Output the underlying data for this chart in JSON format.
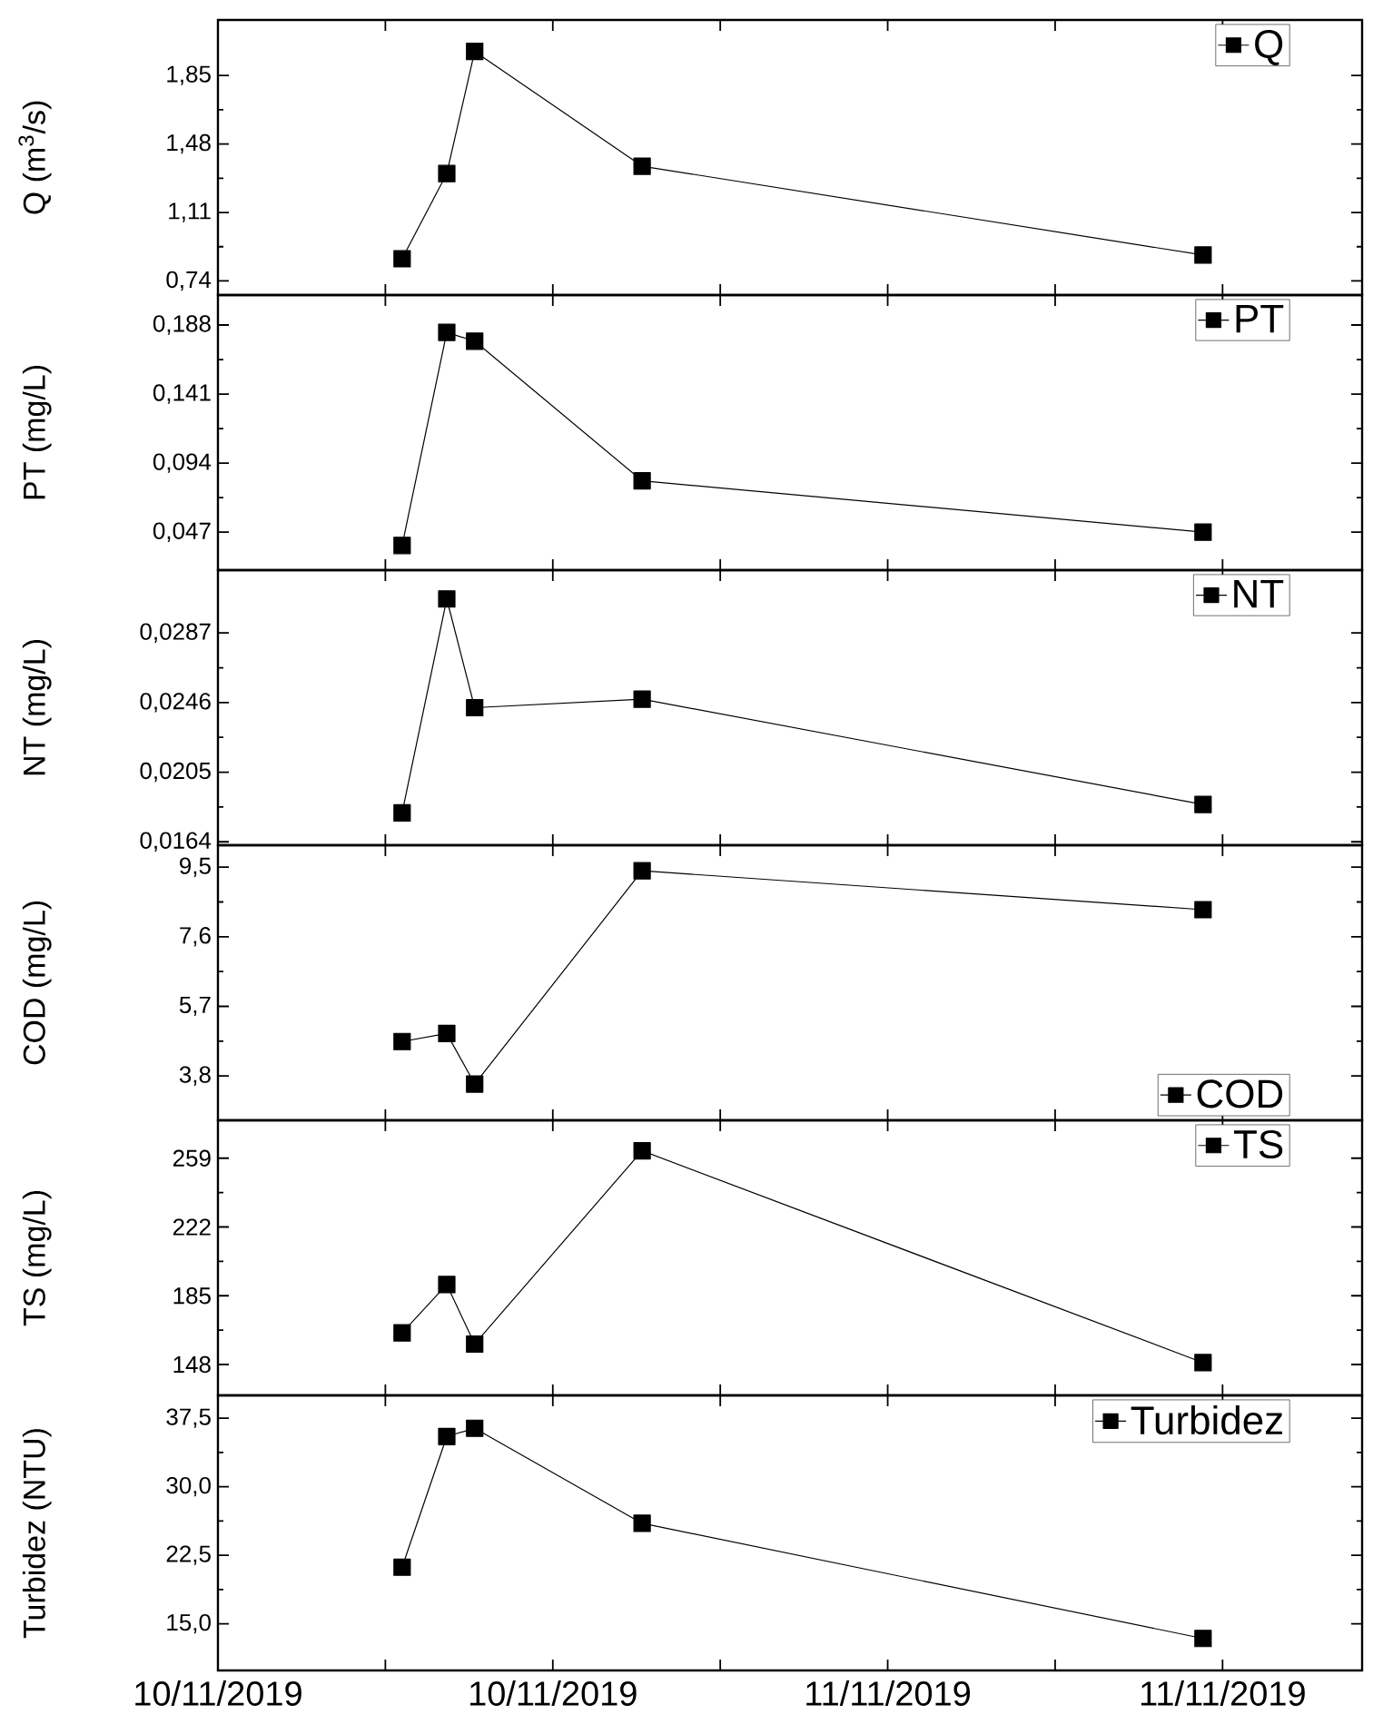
{
  "chart_data": [
    {
      "type": "line",
      "x": [
        "2019-11-10T06:36",
        "2019-11-10T08:12",
        "2019-11-10T09:12",
        "2019-11-10T15:12",
        "2019-11-11T11:18"
      ],
      "ylabel": "Q (m$^{3}$/s)",
      "series": [
        {
          "name": "Q",
          "color": "#000000",
          "values": [
            0.86,
            1.32,
            1.98,
            1.36,
            0.88
          ]
        }
      ],
      "xlim": [
        "2019-11-10T00:00",
        "2019-11-11T17:00"
      ],
      "xticks": [
        {
          "value": "2019-11-10T00:00",
          "label": null
        },
        {
          "value": "2019-11-10T06:00",
          "label": null
        },
        {
          "value": "2019-11-10T12:00",
          "label": null
        },
        {
          "value": "2019-11-10T18:00",
          "label": null
        },
        {
          "value": "2019-11-11T00:00",
          "label": null
        },
        {
          "value": "2019-11-11T06:00",
          "label": null
        },
        {
          "value": "2019-11-11T12:00",
          "label": null
        }
      ],
      "ylim": [
        0.664,
        2.15
      ],
      "yticks": [
        {
          "value": 0.74,
          "label": "0,74"
        },
        {
          "value": 1.11,
          "label": "1,11"
        },
        {
          "value": 1.48,
          "label": "1,48"
        },
        {
          "value": 1.85,
          "label": "1,85"
        }
      ],
      "legend": "top right",
      "marker": "square",
      "tick_labels": "y"
    },
    {
      "type": "line",
      "x": [
        "2019-11-10T06:36",
        "2019-11-10T08:12",
        "2019-11-10T09:12",
        "2019-11-10T15:12",
        "2019-11-11T11:18"
      ],
      "ylabel": "PT (mg/L)",
      "series": [
        {
          "name": "PT",
          "color": "#000000",
          "values": [
            0.038,
            0.183,
            0.177,
            0.082,
            0.047
          ]
        }
      ],
      "xlim": [
        "2019-11-10T00:00",
        "2019-11-11T17:00"
      ],
      "xticks": [
        {
          "value": "2019-11-10T00:00",
          "label": null
        },
        {
          "value": "2019-11-10T06:00",
          "label": null
        },
        {
          "value": "2019-11-10T12:00",
          "label": null
        },
        {
          "value": "2019-11-10T18:00",
          "label": null
        },
        {
          "value": "2019-11-11T00:00",
          "label": null
        },
        {
          "value": "2019-11-11T06:00",
          "label": null
        },
        {
          "value": "2019-11-11T12:00",
          "label": null
        }
      ],
      "ylim": [
        0.0212,
        0.2084
      ],
      "yticks": [
        {
          "value": 0.047,
          "label": "0,047"
        },
        {
          "value": 0.094,
          "label": "0,094"
        },
        {
          "value": 0.141,
          "label": "0,141"
        },
        {
          "value": 0.188,
          "label": "0,188"
        }
      ],
      "legend": "top right",
      "marker": "square",
      "tick_labels": "y"
    },
    {
      "type": "line",
      "x": [
        "2019-11-10T06:36",
        "2019-11-10T08:12",
        "2019-11-10T09:12",
        "2019-11-10T15:12",
        "2019-11-11T11:18"
      ],
      "ylabel": "NT (mg/L)",
      "series": [
        {
          "name": "NT",
          "color": "#000000",
          "values": [
            0.0181,
            0.0307,
            0.0243,
            0.0248,
            0.0186
          ]
        }
      ],
      "xlim": [
        "2019-11-10T00:00",
        "2019-11-11T17:00"
      ],
      "xticks": [
        {
          "value": "2019-11-10T00:00",
          "label": null
        },
        {
          "value": "2019-11-10T06:00",
          "label": null
        },
        {
          "value": "2019-11-10T12:00",
          "label": null
        },
        {
          "value": "2019-11-10T18:00",
          "label": null
        },
        {
          "value": "2019-11-11T00:00",
          "label": null
        },
        {
          "value": "2019-11-11T06:00",
          "label": null
        },
        {
          "value": "2019-11-11T12:00",
          "label": null
        }
      ],
      "ylim": [
        0.0162,
        0.0324
      ],
      "yticks": [
        {
          "value": 0.0164,
          "label": "0,0164"
        },
        {
          "value": 0.0205,
          "label": "0,0205"
        },
        {
          "value": 0.0246,
          "label": "0,0246"
        },
        {
          "value": 0.0287,
          "label": "0,0287"
        }
      ],
      "legend": "top right",
      "marker": "square",
      "tick_labels": "y"
    },
    {
      "type": "line",
      "x": [
        "2019-11-10T06:36",
        "2019-11-10T08:12",
        "2019-11-10T09:12",
        "2019-11-10T15:12",
        "2019-11-11T11:18"
      ],
      "ylabel": "COD (mg/L)",
      "series": [
        {
          "name": "COD",
          "color": "#000000",
          "values": [
            4.74,
            4.96,
            3.58,
            9.4,
            8.34
          ]
        }
      ],
      "xlim": [
        "2019-11-10T00:00",
        "2019-11-11T17:00"
      ],
      "xticks": [
        {
          "value": "2019-11-10T00:00",
          "label": null
        },
        {
          "value": "2019-11-10T06:00",
          "label": null
        },
        {
          "value": "2019-11-10T12:00",
          "label": null
        },
        {
          "value": "2019-11-10T18:00",
          "label": null
        },
        {
          "value": "2019-11-11T00:00",
          "label": null
        },
        {
          "value": "2019-11-11T06:00",
          "label": null
        },
        {
          "value": "2019-11-11T12:00",
          "label": null
        }
      ],
      "ylim": [
        2.59,
        10.1
      ],
      "yticks": [
        {
          "value": 3.8,
          "label": "3,8"
        },
        {
          "value": 5.7,
          "label": "5,7"
        },
        {
          "value": 7.6,
          "label": "7,6"
        },
        {
          "value": 9.5,
          "label": "9,5"
        }
      ],
      "legend": "bottom right",
      "marker": "square",
      "tick_labels": "y"
    },
    {
      "type": "line",
      "x": [
        "2019-11-10T06:36",
        "2019-11-10T08:12",
        "2019-11-10T09:12",
        "2019-11-10T15:12",
        "2019-11-11T11:18"
      ],
      "ylabel": "TS (mg/L)",
      "series": [
        {
          "name": "TS",
          "color": "#000000",
          "values": [
            165,
            191,
            159,
            263,
            149
          ]
        }
      ],
      "xlim": [
        "2019-11-10T00:00",
        "2019-11-11T17:00"
      ],
      "xticks": [
        {
          "value": "2019-11-10T00:00",
          "label": null
        },
        {
          "value": "2019-11-10T06:00",
          "label": null
        },
        {
          "value": "2019-11-10T12:00",
          "label": null
        },
        {
          "value": "2019-11-10T18:00",
          "label": null
        },
        {
          "value": "2019-11-11T00:00",
          "label": null
        },
        {
          "value": "2019-11-11T06:00",
          "label": null
        },
        {
          "value": "2019-11-11T12:00",
          "label": null
        }
      ],
      "ylim": [
        131.4,
        279.4
      ],
      "yticks": [
        148,
        185,
        222,
        259
      ],
      "legend": "top right",
      "marker": "square",
      "tick_labels": "y"
    },
    {
      "type": "line",
      "x": [
        "2019-11-10T06:36",
        "2019-11-10T08:12",
        "2019-11-10T09:12",
        "2019-11-10T15:12",
        "2019-11-11T11:18"
      ],
      "ylabel": "Turbidez (NTU)",
      "series": [
        {
          "name": "Turbidez",
          "color": "#000000",
          "values": [
            21.2,
            35.5,
            36.4,
            26.0,
            13.4
          ]
        }
      ],
      "xlim": [
        "2019-11-10T00:00",
        "2019-11-11T17:00"
      ],
      "xticks": [
        {
          "value": "2019-11-10T00:00",
          "label": "10/11/2019"
        },
        {
          "value": "2019-11-10T06:00",
          "label": null
        },
        {
          "value": "2019-11-10T12:00",
          "label": "10/11/2019"
        },
        {
          "value": "2019-11-10T18:00",
          "label": null
        },
        {
          "value": "2019-11-11T00:00",
          "label": "11/11/2019"
        },
        {
          "value": "2019-11-11T06:00",
          "label": null
        },
        {
          "value": "2019-11-11T12:00",
          "label": "11/11/2019"
        }
      ],
      "ylim": [
        9.9,
        40.0
      ],
      "yticks": [
        {
          "value": 15,
          "label": "15,0"
        },
        {
          "value": 22.5,
          "label": "22,5"
        },
        {
          "value": 30,
          "label": "30,0"
        },
        {
          "value": 37.5,
          "label": "37,5"
        }
      ],
      "legend": "top right",
      "marker": "square"
    }
  ]
}
